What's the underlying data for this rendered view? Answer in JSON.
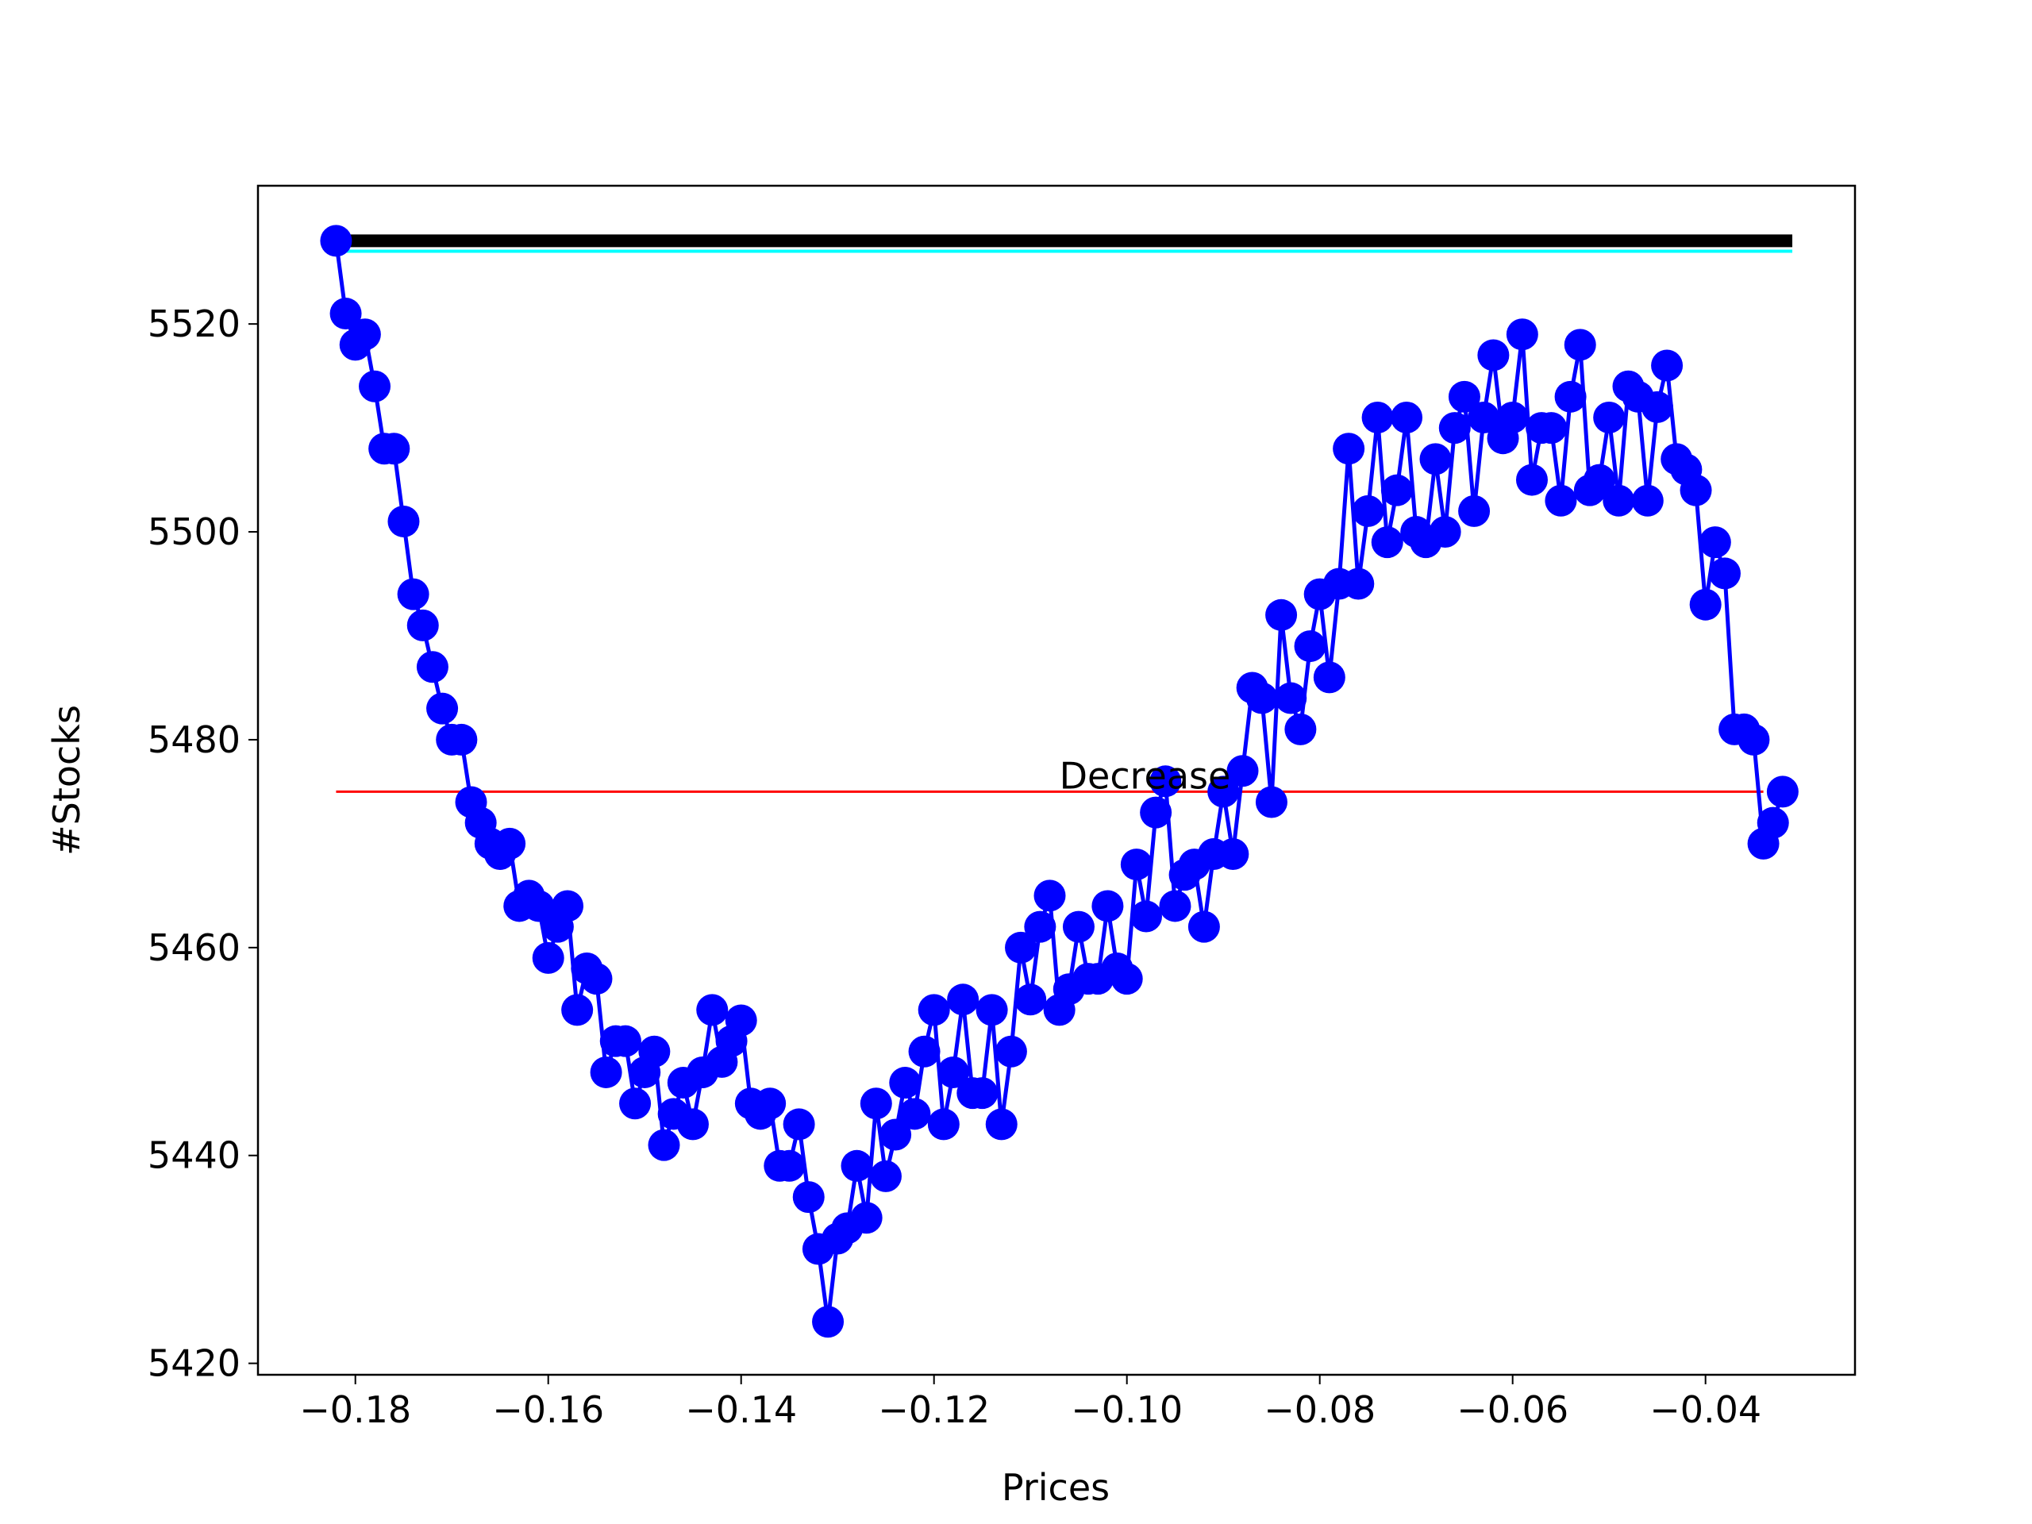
{
  "chart_data": {
    "type": "line",
    "x_label": "Prices",
    "y_label": "#Stocks",
    "x": [
      -0.182,
      -0.181,
      -0.18,
      -0.179,
      -0.178,
      -0.177,
      -0.176,
      -0.175,
      -0.174,
      -0.173,
      -0.172,
      -0.171,
      -0.17,
      -0.169,
      -0.168,
      -0.167,
      -0.166,
      -0.165,
      -0.164,
      -0.163,
      -0.162,
      -0.161,
      -0.16,
      -0.159,
      -0.158,
      -0.157,
      -0.156,
      -0.155,
      -0.154,
      -0.153,
      -0.152,
      -0.151,
      -0.15,
      -0.149,
      -0.148,
      -0.147,
      -0.146,
      -0.145,
      -0.144,
      -0.143,
      -0.142,
      -0.141,
      -0.14,
      -0.139,
      -0.138,
      -0.137,
      -0.136,
      -0.135,
      -0.134,
      -0.133,
      -0.132,
      -0.131,
      -0.13,
      -0.129,
      -0.128,
      -0.127,
      -0.126,
      -0.125,
      -0.124,
      -0.123,
      -0.122,
      -0.121,
      -0.12,
      -0.119,
      -0.118,
      -0.117,
      -0.116,
      -0.115,
      -0.114,
      -0.113,
      -0.112,
      -0.111,
      -0.11,
      -0.109,
      -0.108,
      -0.107,
      -0.106,
      -0.105,
      -0.104,
      -0.103,
      -0.102,
      -0.101,
      -0.1,
      -0.099,
      -0.098,
      -0.097,
      -0.096,
      -0.095,
      -0.094,
      -0.093,
      -0.092,
      -0.091,
      -0.09,
      -0.089,
      -0.088,
      -0.087,
      -0.086,
      -0.085,
      -0.084,
      -0.083,
      -0.082,
      -0.081,
      -0.08,
      -0.079,
      -0.078,
      -0.077,
      -0.076,
      -0.075,
      -0.074,
      -0.073,
      -0.072,
      -0.071,
      -0.07,
      -0.069,
      -0.068,
      -0.067,
      -0.066,
      -0.065,
      -0.064,
      -0.063,
      -0.062,
      -0.061,
      -0.06,
      -0.059,
      -0.058,
      -0.057,
      -0.056,
      -0.055,
      -0.054,
      -0.053,
      -0.052,
      -0.051,
      -0.05,
      -0.049,
      -0.048,
      -0.047,
      -0.046,
      -0.045,
      -0.044,
      -0.043,
      -0.042,
      -0.041,
      -0.04,
      -0.039,
      -0.038,
      -0.037,
      -0.036,
      -0.035,
      -0.034,
      -0.033,
      -0.032
    ],
    "series": [
      {
        "color": "#0000ff",
        "values": [
          5528,
          5521,
          5518,
          5519,
          5514,
          5508,
          5508,
          5501,
          5494,
          5491,
          5487,
          5483,
          5480,
          5480,
          5474,
          5472,
          5470,
          5469,
          5470,
          5464,
          5465,
          5464,
          5459,
          5462,
          5464,
          5454,
          5458,
          5457,
          5448,
          5451,
          5451,
          5445,
          5448,
          5450,
          5441,
          5444,
          5447,
          5443,
          5448,
          5454,
          5449,
          5451,
          5453,
          5445,
          5444,
          5445,
          5439,
          5439,
          5443,
          5436,
          5431,
          5424,
          5432,
          5433,
          5439,
          5434,
          5445,
          5438,
          5442,
          5447,
          5444,
          5450,
          5454,
          5443,
          5448,
          5455,
          5446,
          5446,
          5454,
          5443,
          5450,
          5460,
          5455,
          5462,
          5465,
          5454,
          5456,
          5462,
          5457,
          5457,
          5464,
          5458,
          5457,
          5468,
          5463,
          5473,
          5476,
          5464,
          5467,
          5468,
          5462,
          5469,
          5475,
          5469,
          5477,
          5485,
          5484,
          5474,
          5492,
          5484,
          5481,
          5489,
          5494,
          5486,
          5495,
          5508,
          5495,
          5502,
          5511,
          5499,
          5504,
          5511,
          5500,
          5499,
          5507,
          5500,
          5510,
          5513,
          5502,
          5511,
          5517,
          5509,
          5511,
          5519,
          5505,
          5510,
          5510,
          5503,
          5513,
          5518,
          5504,
          5505,
          5511,
          5503,
          5514,
          5513,
          5503,
          5512,
          5516,
          5507,
          5506,
          5504,
          5493,
          5499,
          5496,
          5481,
          5481,
          5480,
          5470,
          5472,
          5475
        ]
      }
    ],
    "hlines": [
      {
        "y": 5527,
        "xmin": -0.182,
        "xmax": -0.031,
        "color": "#00ffff"
      },
      {
        "y": 5528,
        "xmin": -0.182,
        "xmax": -0.031,
        "color": "#000000"
      },
      {
        "y": 5475,
        "xmin": -0.182,
        "xmax": -0.034,
        "color": "#ff0000"
      }
    ],
    "annotations": [
      {
        "text": "Decrease",
        "x": -0.107,
        "y": 5475
      }
    ],
    "xlim": [
      -0.1901,
      -0.0245
    ],
    "ylim": [
      5418.9,
      5533.3
    ],
    "xticks": [
      {
        "value": -0.18,
        "label": "−0.18"
      },
      {
        "value": -0.16,
        "label": "−0.16"
      },
      {
        "value": -0.14,
        "label": "−0.14"
      },
      {
        "value": -0.12,
        "label": "−0.12"
      },
      {
        "value": -0.1,
        "label": "−0.10"
      },
      {
        "value": -0.08,
        "label": "−0.08"
      },
      {
        "value": -0.06,
        "label": "−0.06"
      },
      {
        "value": -0.04,
        "label": "−0.04"
      }
    ],
    "yticks": [
      5420,
      5440,
      5460,
      5480,
      5500,
      5520
    ],
    "grid": false
  }
}
